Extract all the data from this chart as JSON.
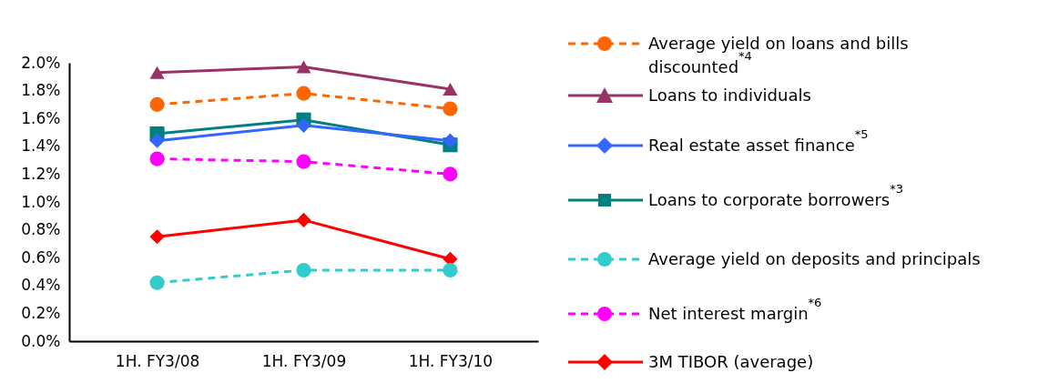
{
  "chart_data": {
    "type": "line",
    "categories": [
      "1H. FY3/08",
      "1H. FY3/09",
      "1H. FY3/10"
    ],
    "ylim": [
      0,
      2.0
    ],
    "yticks": [
      {
        "value": 0,
        "label": "0.0%"
      },
      {
        "value": 0.2,
        "label": "0.2%"
      },
      {
        "value": 0.4,
        "label": "0.4%"
      },
      {
        "value": 0.6,
        "label": "0.6%"
      },
      {
        "value": 0.8,
        "label": "0.8%"
      },
      {
        "value": 1.0,
        "label": "1.0%"
      },
      {
        "value": 1.2,
        "label": "1.2%"
      },
      {
        "value": 1.4,
        "label": "1.4%"
      },
      {
        "value": 1.6,
        "label": "1.6%"
      },
      {
        "value": 1.8,
        "label": "1.8%"
      },
      {
        "value": 2.0,
        "label": "2.0%"
      }
    ],
    "grid": false,
    "legend": "right",
    "series": [
      {
        "name": "Average yield on loans and bills discounted$^{*4}$",
        "color": "#ff6600",
        "line_style": "dashed",
        "marker": "circle",
        "values": [
          1.7,
          1.78,
          1.67
        ]
      },
      {
        "name": "Loans to individuals",
        "color": "#993366",
        "line_style": "solid",
        "marker": "triangle",
        "values": [
          1.93,
          1.97,
          1.81
        ]
      },
      {
        "name": "Real estate asset finance$^{*5}$",
        "color": "#3366ff",
        "line_style": "solid",
        "marker": "diamond",
        "values": [
          1.44,
          1.55,
          1.44
        ]
      },
      {
        "name": "Loans to corporate borrowers$^{*3}$",
        "color": "#008080",
        "line_style": "solid",
        "marker": "square",
        "values": [
          1.49,
          1.59,
          1.41
        ]
      },
      {
        "name": "Average yield on deposits and principals",
        "color": "#33cccc",
        "line_style": "dashed",
        "marker": "circle",
        "values": [
          0.42,
          0.51,
          0.51
        ]
      },
      {
        "name": "Net interest margin$^{*6}$",
        "color": "#ff00ff",
        "line_style": "dashed",
        "marker": "circle",
        "values": [
          1.31,
          1.29,
          1.2
        ]
      },
      {
        "name": "3M TIBOR (average)",
        "color": "#ff0000",
        "line_style": "solid",
        "marker": "diamond",
        "values": [
          0.75,
          0.87,
          0.59
        ]
      }
    ]
  }
}
